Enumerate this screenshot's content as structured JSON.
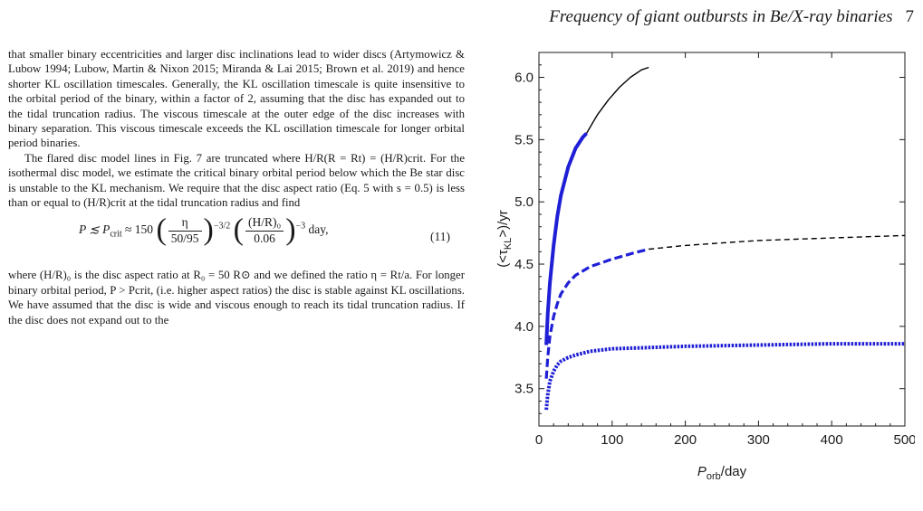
{
  "header": {
    "running_title": "Frequency of giant outbursts in Be/X-ray binaries",
    "page_number": "7"
  },
  "text": {
    "para1": "that smaller binary eccentricities and larger disc inclinations lead to wider discs (Artymowicz & Lubow 1994; Lubow, Martin & Nixon 2015; Miranda & Lai 2015; Brown et al. 2019) and hence shorter KL oscillation timescales. Generally, the KL oscillation timescale is quite insensitive to the orbital period of the binary, within a factor of 2, assuming that the disc has expanded out to the tidal truncation radius. The viscous timescale at the outer edge of the disc increases with binary separation. This viscous timescale exceeds the KL oscillation timescale for longer orbital period binaries.",
    "para2": "The flared disc model lines in Fig. 7 are truncated where H/R(R = Rt) = (H/R)crit. For the isothermal disc model, we estimate the critical binary orbital period below which the Be star disc is unstable to the KL mechanism. We require that the disc aspect ratio (Eq. 5 with s = 0.5) is less than or equal to (H/R)crit at the tidal truncation radius and find",
    "equation": {
      "lhs": "P ≲ P",
      "lhs_sub": "crit",
      "approx": " ≈ 150",
      "frac1_num": "η",
      "frac1_den": "50/95",
      "exp1": "−3/2",
      "frac2_num": "(H/R)₀",
      "frac2_den": "0.06",
      "exp2": "−3",
      "unit": "day,",
      "number": "(11)"
    },
    "para3": "where (H/R)₀ is the disc aspect ratio at R₀ = 50 R⊙ and we defined the ratio η = Rt/a. For longer binary orbital period, P > Pcrit, (i.e. higher aspect ratios) the disc is stable against KL oscillations. We have assumed that the disc is wide and viscous enough to reach its tidal truncation radius. If the disc does not expand out to the"
  },
  "chart_data": {
    "type": "line",
    "xlabel": "P_orb/day",
    "ylabel": "(<τ_KL>)/yr",
    "xlim": [
      0,
      500
    ],
    "ylim": [
      3.2,
      6.2
    ],
    "xticks": [
      "0",
      "100",
      "200",
      "300",
      "400",
      "500"
    ],
    "yticks": [
      "3.5",
      "4.0",
      "4.5",
      "5.0",
      "5.5",
      "6.0"
    ],
    "grid": false,
    "series": [
      {
        "style": "solid",
        "color": "#000000",
        "x": [
          65,
          80,
          95,
          110,
          125,
          140,
          150
        ],
        "y": [
          5.55,
          5.7,
          5.82,
          5.92,
          6.0,
          6.06,
          6.08
        ]
      },
      {
        "style": "solid-thick",
        "color": "#1f1fd6",
        "x": [
          10,
          12,
          15,
          20,
          25,
          30,
          40,
          50,
          60,
          65
        ],
        "y": [
          3.85,
          4.1,
          4.35,
          4.65,
          4.88,
          5.05,
          5.28,
          5.43,
          5.52,
          5.55
        ]
      },
      {
        "style": "dashed",
        "color": "#000000",
        "x": [
          150,
          200,
          250,
          300,
          350,
          400,
          450,
          500
        ],
        "y": [
          4.62,
          4.65,
          4.67,
          4.69,
          4.7,
          4.71,
          4.72,
          4.73
        ]
      },
      {
        "style": "dashed-thick",
        "color": "#1f1fd6",
        "x": [
          10,
          12,
          15,
          20,
          25,
          30,
          40,
          50,
          70,
          100,
          130,
          150
        ],
        "y": [
          3.58,
          3.75,
          3.92,
          4.08,
          4.18,
          4.26,
          4.35,
          4.41,
          4.48,
          4.54,
          4.59,
          4.62
        ]
      },
      {
        "style": "dotted-thick",
        "color": "#1f1fd6",
        "x": [
          10,
          12,
          15,
          20,
          25,
          30,
          40,
          50,
          70,
          100,
          150,
          200,
          300,
          400,
          500
        ],
        "y": [
          3.33,
          3.45,
          3.56,
          3.64,
          3.69,
          3.72,
          3.75,
          3.77,
          3.8,
          3.82,
          3.83,
          3.84,
          3.85,
          3.86,
          3.86
        ]
      }
    ]
  }
}
